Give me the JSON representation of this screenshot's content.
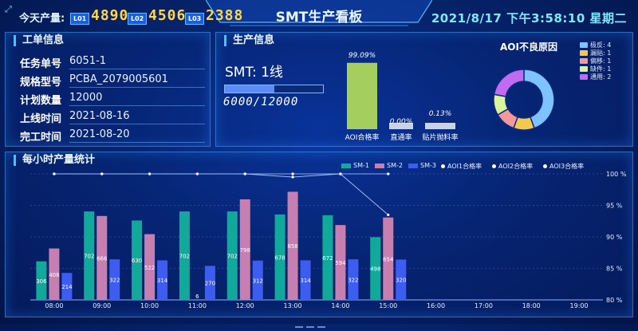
{
  "header": {
    "today_label": "今天产量:",
    "lines": [
      {
        "badge": "L01",
        "value": "4890"
      },
      {
        "badge": "L02",
        "value": "4506"
      },
      {
        "badge": "L03",
        "value": "2388"
      }
    ],
    "title": "SMT生产看板",
    "datetime": "2021/8/17 下午3:58:10 星期二"
  },
  "work_info": {
    "title": "工单信息",
    "rows": [
      {
        "label": "任务单号",
        "value": "6051-1"
      },
      {
        "label": "规格型号",
        "value": "PCBA_2079005601"
      },
      {
        "label": "计划数量",
        "value": "12000"
      },
      {
        "label": "上线时间",
        "value": "2021-08-16"
      },
      {
        "label": "完工时间",
        "value": "2021-08-20"
      }
    ]
  },
  "production": {
    "title": "生产信息",
    "line_name": "SMT: 1线",
    "count_text": "6000/12000",
    "progress_fraction": 0.5,
    "metrics": [
      {
        "label": "AOI合格率",
        "pct": "99.09%",
        "value": 99.09
      },
      {
        "label": "直通率",
        "pct": "0.00%",
        "value": 0.0
      },
      {
        "label": "贴片抛料率",
        "pct": "0.13%",
        "value": 0.13
      }
    ]
  },
  "aoi_defects": {
    "title": "AOI不良原因",
    "items": [
      {
        "label": "极反: 4",
        "value": 4,
        "color": "#7ec3ff"
      },
      {
        "label": "漏贴: 1",
        "value": 1,
        "color": "#f2c94c"
      },
      {
        "label": "偏移: 1",
        "value": 1,
        "color": "#f29999"
      },
      {
        "label": "缺件: 1",
        "value": 1,
        "color": "#d9f59b"
      },
      {
        "label": "通用: 2",
        "value": 2,
        "color": "#c06bf0"
      }
    ]
  },
  "hourly": {
    "title": "每小时产量统计",
    "legend": [
      "SM-1",
      "SM-2",
      "SM-3",
      "AOI1合格率",
      "AOI2合格率",
      "AOI3合格率"
    ],
    "y2_ticks": [
      "100 %",
      "95 %",
      "90 %",
      "85 %",
      "80 %"
    ]
  },
  "chart_data": {
    "type": "bar",
    "categories": [
      "08:00",
      "09:00",
      "10:00",
      "11:00",
      "12:00",
      "13:00",
      "14:00",
      "15:00",
      "16:00",
      "17:00",
      "18:00",
      "19:00"
    ],
    "series": [
      {
        "name": "SM-1",
        "color": "#10a99a",
        "values": [
          306,
          702,
          630,
          702,
          702,
          678,
          672,
          498,
          null,
          null,
          null,
          null
        ]
      },
      {
        "name": "SM-2",
        "color": "#c77fb0",
        "values": [
          408,
          666,
          522,
          null,
          798,
          858,
          594,
          654,
          null,
          null,
          null,
          null
        ]
      },
      {
        "name": "SM-3",
        "color": "#3d5cf0",
        "values": [
          214,
          322,
          314,
          270,
          312,
          314,
          322,
          320,
          null,
          null,
          null,
          null
        ]
      }
    ],
    "extra_bar_labels": [
      {
        "category": "11:00",
        "text": "6"
      }
    ],
    "lines": [
      {
        "name": "AOI1合格率",
        "values": [
          100,
          100,
          100,
          100,
          100,
          99.5,
          100,
          93.5,
          null,
          null,
          null,
          null
        ]
      },
      {
        "name": "AOI2合格率",
        "values": [
          100,
          100,
          100,
          100,
          100,
          100,
          100,
          100,
          null,
          null,
          null,
          null
        ]
      },
      {
        "name": "AOI3合格率",
        "values": [
          100,
          100,
          100,
          100,
          100,
          100,
          100,
          100,
          null,
          null,
          null,
          null
        ]
      }
    ],
    "ylim": [
      0,
      1000
    ],
    "y2lim": [
      80,
      100
    ],
    "grid": true,
    "legend_position": "top-right"
  }
}
